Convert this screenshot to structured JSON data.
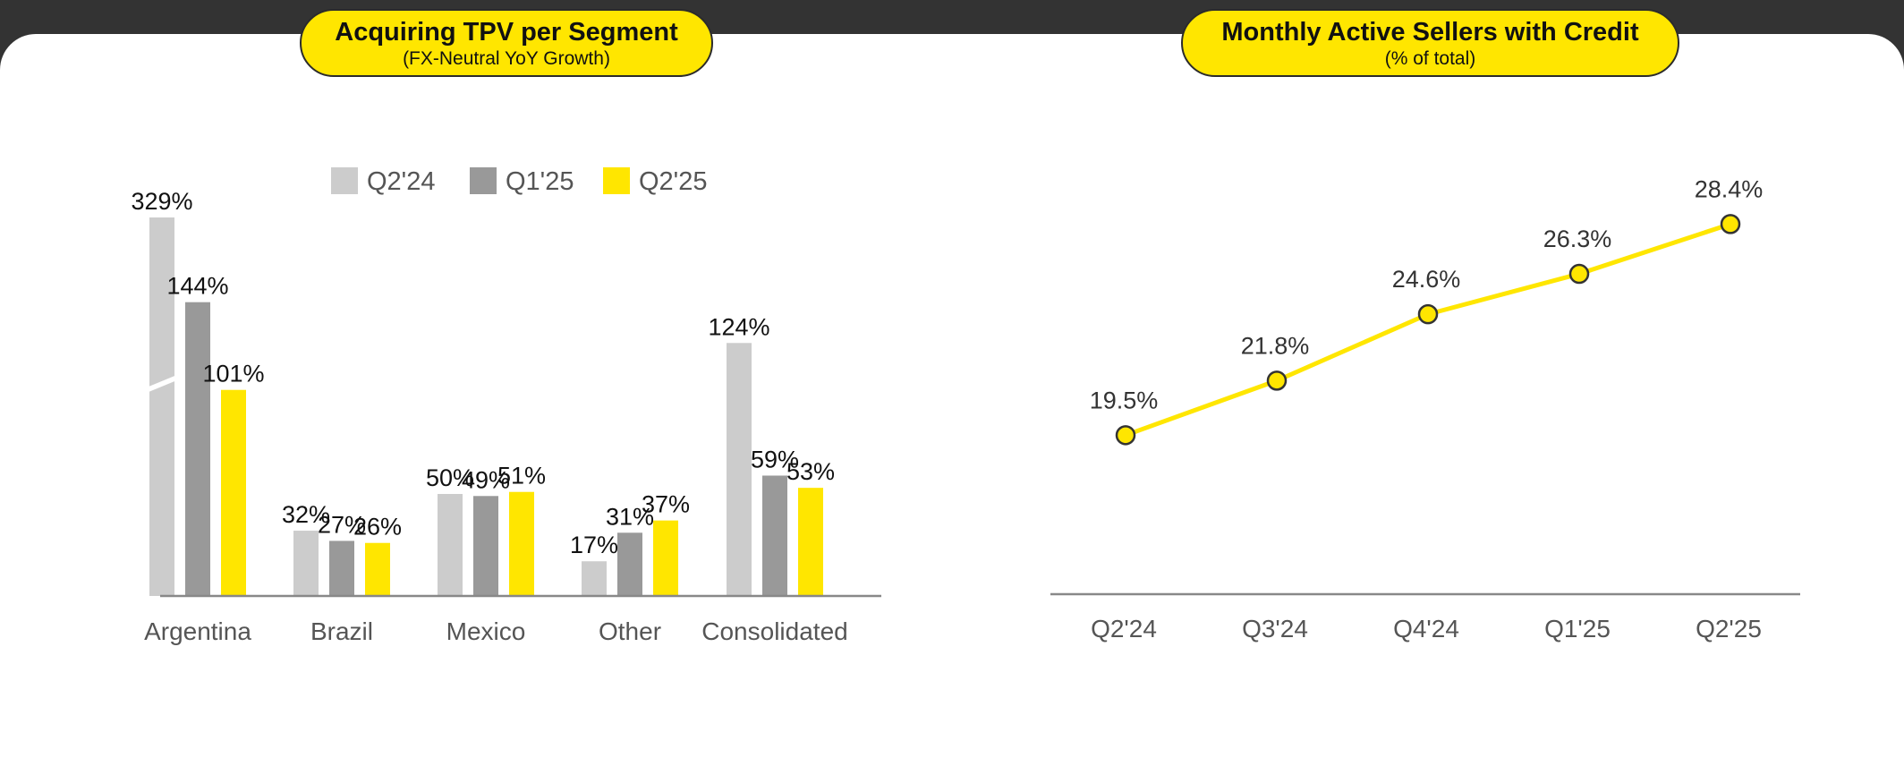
{
  "left_panel": {
    "title": "Acquiring TPV per Segment",
    "subtitle": "(FX-Neutral YoY Growth)"
  },
  "right_panel": {
    "title": "Monthly Active Sellers with Credit",
    "subtitle": "(% of total)"
  },
  "colors": {
    "yellow": "#FFE600",
    "light_gray": "#CCCCCC",
    "dark_gray": "#999999",
    "axis": "#888888",
    "header_bg": "#333333"
  },
  "chart_data": [
    {
      "type": "bar",
      "title": "Acquiring TPV per Segment",
      "subtitle": "(FX-Neutral YoY Growth)",
      "categories": [
        "Argentina",
        "Brazil",
        "Mexico",
        "Other",
        "Consolidated"
      ],
      "series": [
        {
          "name": "Q2'24",
          "color": "#CCCCCC",
          "values": [
            329,
            32,
            50,
            17,
            124
          ],
          "labels": [
            "329%",
            "32%",
            "50%",
            "17%",
            "124%"
          ]
        },
        {
          "name": "Q1'25",
          "color": "#999999",
          "values": [
            144,
            27,
            49,
            31,
            59
          ],
          "labels": [
            "144%",
            "27%",
            "49%",
            "31%",
            "59%"
          ]
        },
        {
          "name": "Q2'25",
          "color": "#FFE600",
          "values": [
            101,
            26,
            51,
            37,
            53
          ],
          "labels": [
            "101%",
            "26%",
            "51%",
            "37%",
            "53%"
          ]
        }
      ],
      "axis_break": {
        "category": "Argentina",
        "series": "Q2'24"
      },
      "legend": "top",
      "grid": false,
      "ylim": [
        0,
        185
      ]
    },
    {
      "type": "line",
      "title": "Monthly Active Sellers with Credit",
      "subtitle": "(% of total)",
      "categories": [
        "Q2'24",
        "Q3'24",
        "Q4'24",
        "Q1'25",
        "Q2'25"
      ],
      "values": [
        19.5,
        21.8,
        24.6,
        26.3,
        28.4
      ],
      "labels": [
        "19.5%",
        "21.8%",
        "24.6%",
        "26.3%",
        "28.4%"
      ],
      "color": "#FFE600",
      "grid": false,
      "ylim": [
        12.8,
        30.3
      ]
    }
  ]
}
